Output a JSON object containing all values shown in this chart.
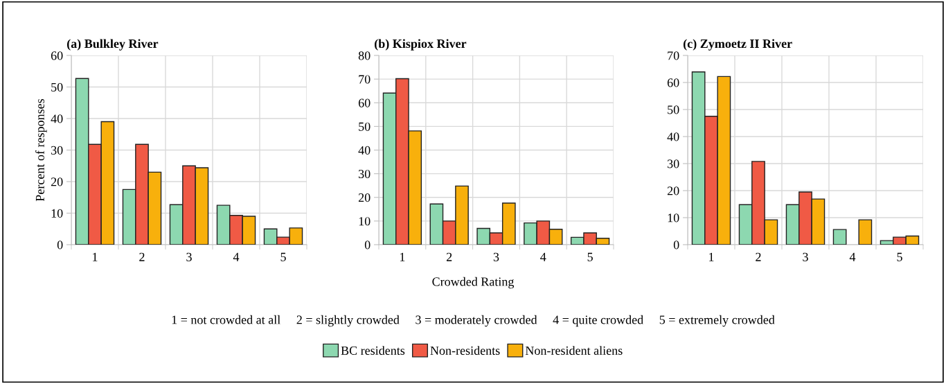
{
  "chart_data": [
    {
      "type": "bar",
      "title": "(a) Bulkley River",
      "ylabel": "Percent of responses",
      "categories": [
        "1",
        "2",
        "3",
        "4",
        "5"
      ],
      "ylim": [
        0,
        60
      ],
      "yticks": [
        0,
        10,
        20,
        30,
        40,
        50,
        60
      ],
      "grid": true,
      "legend": "bottom",
      "series": [
        {
          "name": "BC residents",
          "color": "#8dd8b0",
          "values": [
            52.7,
            17.5,
            12.7,
            12.5,
            5.0
          ]
        },
        {
          "name": "Non-residents",
          "color": "#f05a45",
          "values": [
            31.8,
            31.8,
            25.0,
            9.3,
            2.4
          ]
        },
        {
          "name": "Non-resident aliens",
          "color": "#f8b00c",
          "values": [
            39.0,
            23.0,
            24.4,
            9.0,
            5.3
          ]
        }
      ]
    },
    {
      "type": "bar",
      "title": "(b) Kispiox River",
      "xlabel": "Crowded Rating",
      "categories": [
        "1",
        "2",
        "3",
        "4",
        "5"
      ],
      "ylim": [
        0,
        80
      ],
      "yticks": [
        0,
        10,
        20,
        30,
        40,
        50,
        60,
        70,
        80
      ],
      "grid": true,
      "annotations": [
        "1 = not crowded at all     2 = slightly crowded     3 = moderately crowded     4 = quite crowded     5 = extremely crowded"
      ],
      "series": [
        {
          "color": "#8dd8b0",
          "values": [
            64.1,
            17.2,
            6.9,
            9.2,
            3.1
          ]
        },
        {
          "color": "#f05a45",
          "values": [
            70.2,
            10.0,
            5.0,
            10.0,
            5.0
          ]
        },
        {
          "color": "#f8b00c",
          "values": [
            48.1,
            24.8,
            17.6,
            6.5,
            2.7
          ]
        }
      ]
    },
    {
      "type": "bar",
      "title": "(c) Zymoetz II River",
      "categories": [
        "1",
        "2",
        "3",
        "4",
        "5"
      ],
      "ylim": [
        0,
        70
      ],
      "yticks": [
        0,
        10,
        20,
        30,
        40,
        50,
        60,
        70
      ],
      "grid": true,
      "series": [
        {
          "color": "#8dd8b0",
          "values": [
            63.9,
            14.8,
            14.8,
            5.6,
            1.5
          ]
        },
        {
          "color": "#f05a45",
          "values": [
            47.5,
            30.8,
            19.5,
            null,
            2.8
          ]
        },
        {
          "color": "#f8b00c",
          "values": [
            62.2,
            9.2,
            16.9,
            9.2,
            3.2
          ]
        }
      ]
    }
  ]
}
